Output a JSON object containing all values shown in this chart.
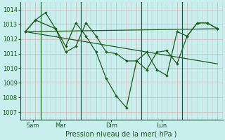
{
  "xlabel": "Pression niveau de la mer( hPa )",
  "ylim": [
    1006.5,
    1014.5
  ],
  "yticks": [
    1007,
    1008,
    1009,
    1010,
    1011,
    1012,
    1013,
    1014
  ],
  "bg_color": "#c8eeed",
  "line_color": "#1a5c1a",
  "grid_color_major": "#d4b8b8",
  "xtick_labels": [
    "Sam",
    "Mar",
    "Dim",
    "Lun"
  ],
  "total_points": 20,
  "series_main": {
    "x": [
      0,
      1,
      2,
      3,
      4,
      5,
      6,
      7,
      8,
      9,
      10,
      11,
      12,
      13,
      14,
      15,
      16,
      17,
      18,
      19
    ],
    "y": [
      1012.5,
      1013.3,
      1013.8,
      1012.7,
      1011.1,
      1011.5,
      1013.1,
      1012.2,
      1011.1,
      1011.0,
      1010.5,
      1010.5,
      1009.9,
      1011.1,
      1011.2,
      1010.3,
      1012.2,
      1013.1,
      1013.1,
      1012.7
    ]
  },
  "series_dip": {
    "x": [
      0,
      1,
      3,
      4,
      5,
      6,
      7,
      8,
      9,
      10,
      11,
      12,
      13,
      14,
      15,
      16,
      17,
      18,
      19
    ],
    "y": [
      1012.5,
      1013.3,
      1012.7,
      1011.5,
      1013.1,
      1012.2,
      1011.1,
      1009.3,
      1008.1,
      1007.3,
      1010.5,
      1011.1,
      1009.9,
      1009.5,
      1012.5,
      1012.2,
      1013.1,
      1013.1,
      1012.7
    ]
  },
  "series_flat": {
    "x": [
      0,
      19
    ],
    "y": [
      1012.5,
      1012.7
    ]
  },
  "series_slope": {
    "x": [
      0,
      19
    ],
    "y": [
      1012.5,
      1010.3
    ]
  }
}
